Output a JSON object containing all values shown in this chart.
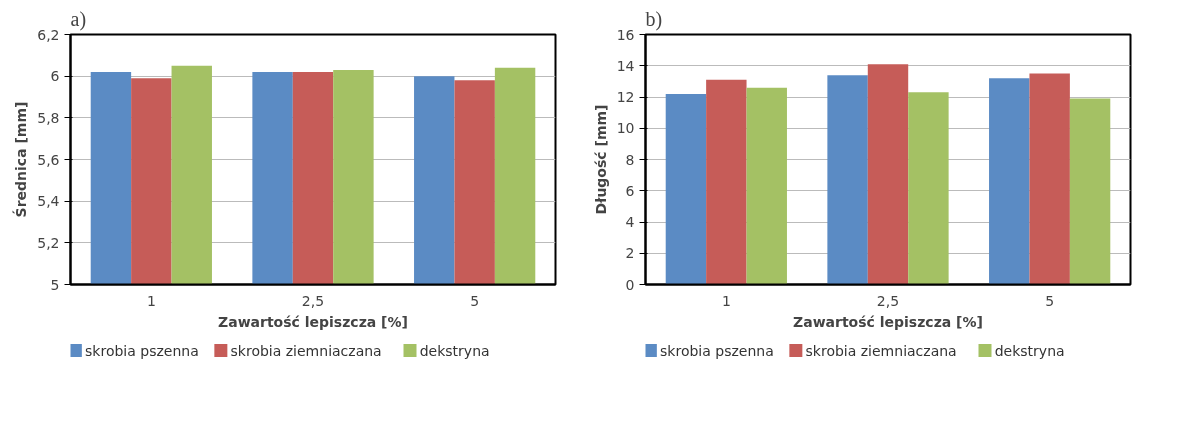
{
  "chart_data": [
    {
      "type": "bar",
      "title": "a)",
      "xlabel": "Zawartość lepiszcza [%]",
      "ylabel": "Średnica [mm]",
      "categories": [
        "1",
        "2,5",
        "5"
      ],
      "series": [
        {
          "name": "skrobia pszenna",
          "color": "#5b8bc4",
          "values": [
            6.02,
            6.02,
            6.0
          ]
        },
        {
          "name": "skrobia ziemniaczana",
          "color": "#c65c58",
          "values": [
            5.99,
            6.02,
            5.98
          ]
        },
        {
          "name": "dekstryna",
          "color": "#a4c164",
          "values": [
            6.05,
            6.03,
            6.04
          ]
        }
      ],
      "ylim": [
        5,
        6.2
      ],
      "yticks": [
        5,
        {
          "value": 5.2,
          "label": "5,2"
        },
        {
          "value": 5.4,
          "label": "5,4"
        },
        {
          "value": 5.6,
          "label": "5,6"
        },
        {
          "value": 5.8,
          "label": "5,8"
        },
        6,
        {
          "value": 6.2,
          "label": "6,2"
        }
      ],
      "grid": "y",
      "legend": "bottom"
    },
    {
      "type": "bar",
      "title": "b)",
      "xlabel": "Zawartość lepiszcza [%]",
      "ylabel": "Długość [mm]",
      "categories": [
        "1",
        "2,5",
        "5"
      ],
      "series": [
        {
          "name": "skrobia pszenna",
          "color": "#5b8bc4",
          "values": [
            12.2,
            13.4,
            13.2
          ]
        },
        {
          "name": "skrobia ziemniaczana",
          "color": "#c65c58",
          "values": [
            13.1,
            14.1,
            13.5
          ]
        },
        {
          "name": "dekstryna",
          "color": "#a4c164",
          "values": [
            12.6,
            12.3,
            11.9
          ]
        }
      ],
      "ylim": [
        0,
        16
      ],
      "yticks": [
        0,
        2,
        4,
        6,
        8,
        10,
        12,
        14,
        16
      ],
      "grid": "y",
      "legend": "bottom"
    }
  ]
}
